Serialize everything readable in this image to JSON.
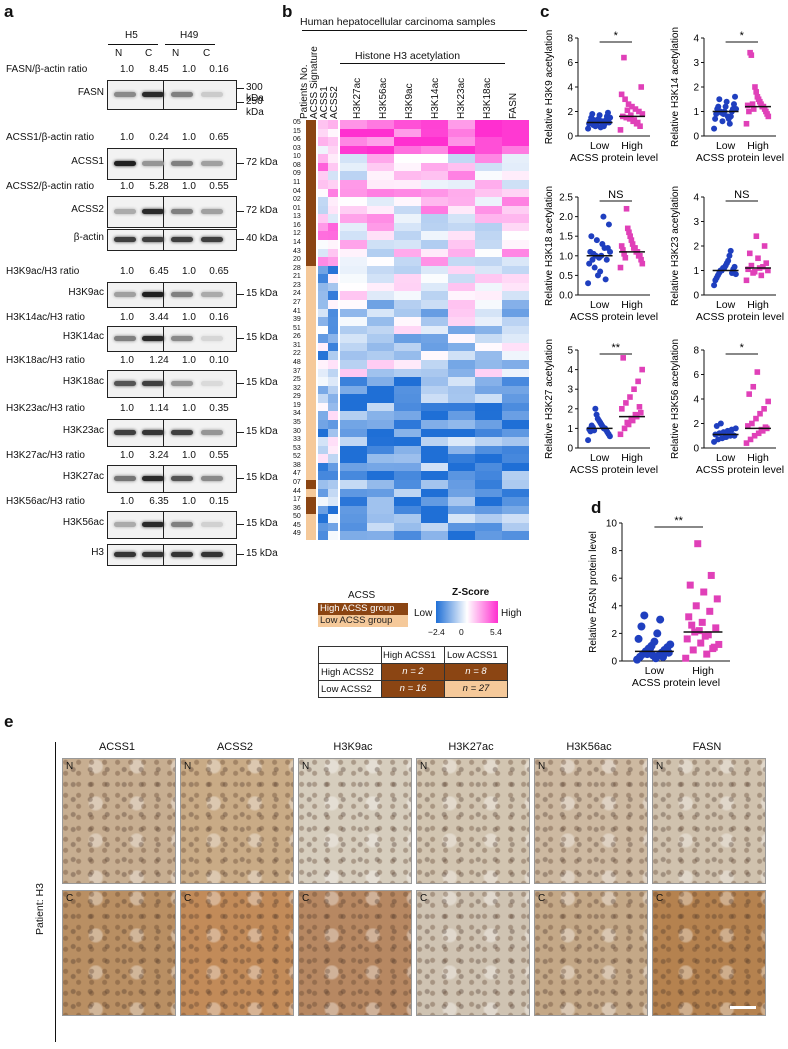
{
  "panel_a": {
    "letter": "a",
    "groups": [
      "H5",
      "H49"
    ],
    "lanes": [
      "N",
      "C",
      "N",
      "C"
    ],
    "rows": [
      {
        "ratio_label": "FASN/β-actin ratio",
        "ratios": [
          "1.0",
          "8.45",
          "1.0",
          "0.16"
        ],
        "blot": "FASN",
        "kda": [
          "300 kDa",
          "250 kDa"
        ],
        "intensity": [
          0.45,
          0.9,
          0.5,
          0.15
        ]
      },
      {
        "ratio_label": "ACSS1/β-actin ratio",
        "ratios": [
          "1.0",
          "0.24",
          "1.0",
          "0.65"
        ],
        "blot": "ACSS1",
        "kda": [
          "72 kDa"
        ],
        "intensity": [
          0.95,
          0.4,
          0.5,
          0.35
        ]
      },
      {
        "ratio_label": "ACSS2/β-actin ratio",
        "ratios": [
          "1.0",
          "5.28",
          "1.0",
          "0.55"
        ],
        "blot": "ACSS2",
        "kda": [
          "72 kDa"
        ],
        "intensity": [
          0.3,
          0.9,
          0.5,
          0.35
        ]
      },
      {
        "ratio_label": "",
        "ratios": [],
        "blot": "β-actin",
        "kda": [
          "40 kDa"
        ],
        "intensity": [
          0.8,
          0.8,
          0.8,
          0.8
        ]
      },
      {
        "ratio_label": "H3K9ac/H3 ratio",
        "ratios": [
          "1.0",
          "6.45",
          "1.0",
          "0.65"
        ],
        "blot": "H3K9ac",
        "kda": [
          "15 kDa"
        ],
        "intensity": [
          0.35,
          0.95,
          0.5,
          0.3
        ]
      },
      {
        "ratio_label": "H3K14ac/H3 ratio",
        "ratios": [
          "1.0",
          "3.44",
          "1.0",
          "0.16"
        ],
        "blot": "H3K14ac",
        "kda": [
          "15 kDa"
        ],
        "intensity": [
          0.5,
          0.9,
          0.45,
          0.1
        ]
      },
      {
        "ratio_label": "H3K18ac/H3 ratio",
        "ratios": [
          "1.0",
          "1.24",
          "1.0",
          "0.10"
        ],
        "blot": "H3K18ac",
        "kda": [
          "15 kDa"
        ],
        "intensity": [
          0.7,
          0.8,
          0.4,
          0.08
        ]
      },
      {
        "ratio_label": "H3K23ac/H3 ratio",
        "ratios": [
          "1.0",
          "1.14",
          "1.0",
          "0.35"
        ],
        "blot": "H3K23ac",
        "kda": [
          "15 kDa"
        ],
        "intensity": [
          0.8,
          0.85,
          0.8,
          0.4
        ]
      },
      {
        "ratio_label": "H3K27ac/H3 ratio",
        "ratios": [
          "1.0",
          "3.24",
          "1.0",
          "0.55"
        ],
        "blot": "H3K27ac",
        "kda": [
          "15 kDa"
        ],
        "intensity": [
          0.55,
          0.9,
          0.7,
          0.45
        ]
      },
      {
        "ratio_label": "H3K56ac/H3 ratio",
        "ratios": [
          "1.0",
          "6.35",
          "1.0",
          "0.15"
        ],
        "blot": "H3K56ac",
        "kda": [
          "15 kDa"
        ],
        "intensity": [
          0.3,
          0.9,
          0.5,
          0.12
        ]
      },
      {
        "ratio_label": "",
        "ratios": [],
        "blot": "H3",
        "kda": [
          "15 kDa"
        ],
        "intensity": [
          0.85,
          0.85,
          0.85,
          0.85
        ]
      }
    ]
  },
  "panel_b": {
    "letter": "b",
    "title": "Human hepatocellular carcinoma samples",
    "group_header": "Histone H3 acetylation",
    "row_header_labels": [
      "Patients No.",
      "ACSS Signature",
      "ACSS1",
      "ACSS2"
    ],
    "columns": [
      "H3K27ac",
      "H3K56ac",
      "H3K9ac",
      "H3K14ac",
      "H3K23ac",
      "H3K18ac",
      "FASN"
    ],
    "patients": [
      "05",
      "15",
      "06",
      "03",
      "10",
      "08",
      "09",
      "11",
      "04",
      "02",
      "01",
      "13",
      "16",
      "12",
      "14",
      "43",
      "20",
      "28",
      "21",
      "23",
      "24",
      "27",
      "41",
      "39",
      "51",
      "26",
      "31",
      "22",
      "48",
      "37",
      "25",
      "32",
      "29",
      "19",
      "34",
      "35",
      "30",
      "33",
      "53",
      "52",
      "38",
      "47",
      "07",
      "44",
      "17",
      "36",
      "50",
      "45",
      "49"
    ],
    "legend_title": "ACSS",
    "legend_high": "High ACSS group",
    "legend_low": "Low  ACSS group",
    "zscore_title": "Z-Score",
    "zscore_low": "Low",
    "zscore_high": "High",
    "zscore_min": "−2.4",
    "zscore_mid": "0",
    "zscore_max": "5.4",
    "table": {
      "col1": "High ACSS1",
      "col2": "Low ACSS1",
      "row1": "High ACSS2",
      "row2": "Low ACSS2",
      "c11": "n = 2",
      "c12": "n = 8",
      "c21": "n = 16",
      "c22": "n = 27"
    },
    "colors": {
      "high_group": "#8b4513",
      "low_group": "#f5c99a",
      "low": "#1f6fd6",
      "high": "#ff2fd0"
    }
  },
  "panel_c": {
    "letter": "c",
    "xlabel": "ACSS protein level",
    "categories": [
      "Low",
      "High"
    ],
    "plots": [
      {
        "ylabel": "Relative H3K9 acetylation",
        "sig": "*",
        "yticks": [
          "0",
          "2",
          "4",
          "6",
          "8"
        ],
        "ymax": 8
      },
      {
        "ylabel": "Relative H3K14 acetylation",
        "sig": "*",
        "yticks": [
          "0",
          "1",
          "2",
          "3",
          "4"
        ],
        "ymax": 4
      },
      {
        "ylabel": "Relative H3K18 acetylation",
        "sig": "NS",
        "yticks": [
          "0.0",
          "0.5",
          "1.0",
          "1.5",
          "2.0",
          "2.5"
        ],
        "ymax": 2.5
      },
      {
        "ylabel": "Relative H3K23 acetylation",
        "sig": "NS",
        "yticks": [
          "0",
          "1",
          "2",
          "3",
          "4"
        ],
        "ymax": 4
      },
      {
        "ylabel": "Relative H3K27 acetylation",
        "sig": "**",
        "yticks": [
          "0",
          "1",
          "2",
          "3",
          "4",
          "5"
        ],
        "ymax": 5
      },
      {
        "ylabel": "Relative H3K56 acetylation",
        "sig": "*",
        "yticks": [
          "0",
          "2",
          "4",
          "6",
          "8"
        ],
        "ymax": 8
      }
    ]
  },
  "panel_d": {
    "letter": "d",
    "ylabel": "Relative FASN protein level",
    "xlabel": "ACSS protein level",
    "categories": [
      "Low",
      "High"
    ],
    "sig": "**",
    "yticks": [
      "0",
      "2",
      "4",
      "6",
      "8",
      "10"
    ],
    "ymax": 10
  },
  "panel_e": {
    "letter": "e",
    "side_label": "Patient: H3",
    "columns": [
      "ACSS1",
      "ACSS2",
      "H3K9ac",
      "H3K27ac",
      "H3K56ac",
      "FASN"
    ],
    "row_tags": [
      "N",
      "C"
    ]
  },
  "chart_data": [
    {
      "type": "scatter",
      "ylabel": "Relative H3K9 acetylation",
      "xlabel": "ACSS protein level",
      "categories": [
        "Low",
        "High"
      ],
      "series": [
        {
          "name": "Low",
          "values": [
            0.6,
            0.8,
            0.9,
            1.0,
            1.0,
            1.1,
            1.2,
            1.3,
            1.4,
            1.5,
            1.6,
            1.7,
            1.8,
            1.9,
            0.7,
            0.9,
            1.1,
            1.2,
            1.3,
            1.5,
            1.0,
            0.8
          ],
          "color": "#1f3fbf",
          "median": 1.1
        },
        {
          "name": "High",
          "values": [
            0.5,
            0.8,
            1.0,
            1.2,
            1.4,
            1.5,
            1.6,
            1.8,
            2.0,
            2.2,
            2.4,
            2.6,
            3.0,
            3.4,
            4.0,
            1.1,
            1.3,
            1.7,
            2.1,
            6.4
          ],
          "color": "#e040b8",
          "median": 1.6
        }
      ],
      "ylim": [
        0,
        8
      ]
    },
    {
      "type": "scatter",
      "ylabel": "Relative H3K14 acetylation",
      "xlabel": "ACSS protein level",
      "categories": [
        "Low",
        "High"
      ],
      "series": [
        {
          "name": "Low",
          "values": [
            0.3,
            0.5,
            0.6,
            0.7,
            0.8,
            0.9,
            0.9,
            1.0,
            1.0,
            1.1,
            1.1,
            1.2,
            1.2,
            1.3,
            1.4,
            1.5,
            1.6,
            0.8,
            1.0,
            1.1,
            0.7,
            0.95
          ],
          "color": "#1f3fbf",
          "median": 1.0
        },
        {
          "name": "High",
          "values": [
            0.5,
            0.8,
            0.9,
            1.0,
            1.1,
            1.2,
            1.2,
            1.3,
            1.4,
            1.5,
            1.6,
            1.8,
            2.0,
            1.1,
            1.3,
            3.3,
            3.4,
            1.0,
            1.25
          ],
          "color": "#e040b8",
          "median": 1.2
        }
      ],
      "ylim": [
        0,
        4
      ]
    },
    {
      "type": "scatter",
      "ylabel": "Relative H3K18 acetylation",
      "xlabel": "ACSS protein level",
      "categories": [
        "Low",
        "High"
      ],
      "series": [
        {
          "name": "Low",
          "values": [
            0.3,
            0.4,
            0.6,
            0.7,
            0.8,
            0.9,
            1.0,
            1.0,
            1.1,
            1.2,
            1.3,
            1.4,
            1.5,
            1.8,
            2.0,
            0.5,
            0.9,
            1.1,
            1.2,
            0.95,
            1.05
          ],
          "color": "#1f3fbf",
          "median": 1.0
        },
        {
          "name": "High",
          "values": [
            0.7,
            0.8,
            0.9,
            1.0,
            1.0,
            1.1,
            1.1,
            1.2,
            1.2,
            1.3,
            1.4,
            1.5,
            1.6,
            1.7,
            2.2,
            0.95,
            1.05,
            1.15,
            1.25
          ],
          "color": "#e040b8",
          "median": 1.1
        }
      ],
      "ylim": [
        0,
        2.5
      ]
    },
    {
      "type": "scatter",
      "ylabel": "Relative H3K23 acetylation",
      "xlabel": "ACSS protein level",
      "categories": [
        "Low",
        "High"
      ],
      "series": [
        {
          "name": "Low",
          "values": [
            0.4,
            0.6,
            0.7,
            0.8,
            0.9,
            1.0,
            1.0,
            1.1,
            1.1,
            1.2,
            1.3,
            1.4,
            1.6,
            1.8,
            0.9,
            1.05,
            1.15,
            0.85
          ],
          "color": "#1f3fbf",
          "median": 1.0
        },
        {
          "name": "High",
          "values": [
            0.6,
            0.8,
            0.9,
            1.0,
            1.1,
            1.2,
            1.3,
            1.5,
            1.7,
            2.0,
            2.4,
            1.05,
            1.15,
            0.95
          ],
          "color": "#e040b8",
          "median": 1.1
        }
      ],
      "ylim": [
        0,
        4
      ]
    },
    {
      "type": "scatter",
      "ylabel": "Relative H3K27 acetylation",
      "xlabel": "ACSS protein level",
      "categories": [
        "Low",
        "High"
      ],
      "series": [
        {
          "name": "Low",
          "values": [
            0.4,
            0.6,
            0.7,
            0.8,
            0.9,
            1.0,
            1.0,
            1.1,
            1.2,
            1.3,
            1.4,
            1.5,
            1.7,
            2.0,
            0.9,
            1.05,
            1.15,
            0.85,
            0.95
          ],
          "color": "#1f3fbf",
          "median": 1.0
        },
        {
          "name": "High",
          "values": [
            0.7,
            1.0,
            1.2,
            1.4,
            1.6,
            1.8,
            2.0,
            2.3,
            2.6,
            3.0,
            3.4,
            4.0,
            4.6,
            1.3,
            1.5,
            1.7,
            2.1
          ],
          "color": "#e040b8",
          "median": 1.6
        }
      ],
      "ylim": [
        0,
        5
      ]
    },
    {
      "type": "scatter",
      "ylabel": "Relative H3K56 acetylation",
      "xlabel": "ACSS protein level",
      "categories": [
        "Low",
        "High"
      ],
      "series": [
        {
          "name": "Low",
          "values": [
            0.5,
            0.7,
            0.8,
            0.9,
            1.0,
            1.0,
            1.1,
            1.2,
            1.3,
            1.4,
            1.5,
            1.6,
            1.8,
            2.0,
            0.9,
            1.1,
            1.05
          ],
          "color": "#1f3fbf",
          "median": 1.1
        },
        {
          "name": "High",
          "values": [
            0.4,
            0.7,
            1.0,
            1.2,
            1.4,
            1.6,
            1.8,
            2.0,
            2.4,
            2.8,
            3.2,
            3.8,
            4.4,
            5.0,
            6.2,
            1.5,
            1.7
          ],
          "color": "#e040b8",
          "median": 1.6
        }
      ],
      "ylim": [
        0,
        8
      ]
    },
    {
      "type": "scatter",
      "ylabel": "Relative FASN protein level",
      "xlabel": "ACSS protein level",
      "categories": [
        "Low",
        "High"
      ],
      "series": [
        {
          "name": "Low",
          "values": [
            0.1,
            0.2,
            0.3,
            0.4,
            0.5,
            0.6,
            0.7,
            0.8,
            0.9,
            1.0,
            1.1,
            1.2,
            1.4,
            1.6,
            2.0,
            2.5,
            3.0,
            3.3,
            0.3,
            0.5,
            0.7,
            0.9,
            0.6,
            0.4
          ],
          "color": "#1f3fbf",
          "median": 0.7
        },
        {
          "name": "High",
          "values": [
            0.2,
            0.5,
            0.8,
            1.0,
            1.3,
            1.6,
            1.9,
            2.1,
            2.4,
            2.8,
            3.2,
            3.6,
            4.0,
            4.5,
            5.0,
            5.5,
            6.2,
            8.5,
            1.2,
            1.8,
            2.6,
            0.9,
            2.2
          ],
          "color": "#e040b8",
          "median": 2.1
        }
      ],
      "ylim": [
        0,
        10
      ]
    }
  ]
}
